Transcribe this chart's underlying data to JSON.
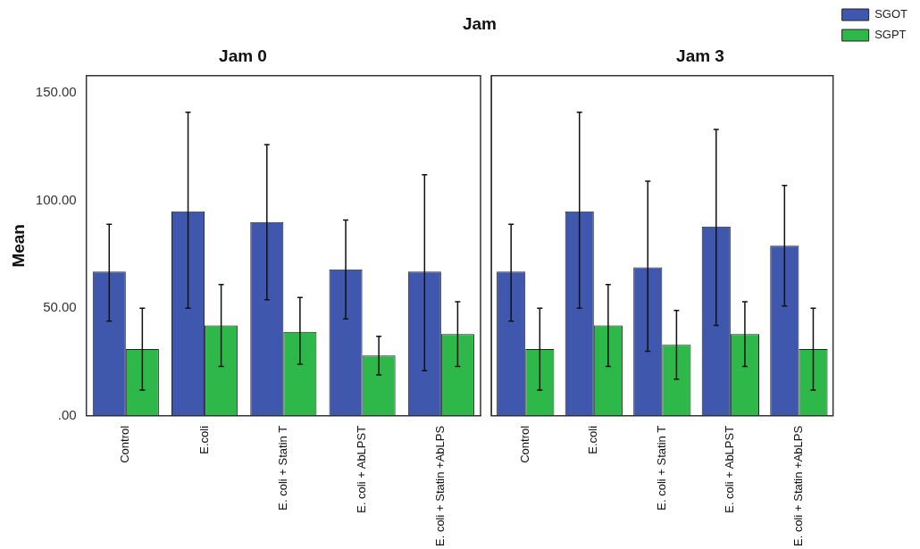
{
  "chart_data": [
    {
      "type": "bar",
      "title": "Jam 0",
      "annotations": [
        "Jam"
      ],
      "ylabel": "Mean",
      "categories": [
        "Control",
        "E.coli",
        "E. coli + Statin T",
        "E. coli + AbLPST",
        "E. coli + Statin +AbLPS"
      ],
      "series": [
        {
          "color": "#3f58ad",
          "values": [
            67,
            95,
            90,
            68,
            67
          ],
          "errors": [
            [
              44,
              89
            ],
            [
              50,
              141
            ],
            [
              54,
              126
            ],
            [
              45,
              91
            ],
            [
              21,
              112
            ]
          ]
        },
        {
          "color": "#2fb84a",
          "values": [
            31,
            42,
            39,
            28,
            38
          ],
          "errors": [
            [
              12,
              50
            ],
            [
              23,
              61
            ],
            [
              24,
              55
            ],
            [
              19,
              37
            ],
            [
              23,
              53
            ]
          ]
        }
      ],
      "ylim": [
        0,
        158
      ],
      "yticks": [
        {
          "value": 0,
          "label": ".00"
        },
        {
          "value": 50,
          "label": "50.00"
        },
        {
          "value": 100,
          "label": "100.00"
        },
        {
          "value": 150,
          "label": "150.00"
        }
      ],
      "grid": false,
      "legend": false
    },
    {
      "type": "bar",
      "title": "Jam 3",
      "categories": [
        "Control",
        "E.coli",
        "E. coli + Statin T",
        "E. coli + AbLPST",
        "E. coli + Statin +AbLPS"
      ],
      "series": [
        {
          "name": "SGOT",
          "color": "#3f58ad",
          "values": [
            67,
            95,
            69,
            88,
            79
          ],
          "errors": [
            [
              44,
              89
            ],
            [
              50,
              141
            ],
            [
              30,
              109
            ],
            [
              42,
              133
            ],
            [
              51,
              107
            ]
          ]
        },
        {
          "name": "SGPT",
          "color": "#2fb84a",
          "values": [
            31,
            42,
            33,
            38,
            31
          ],
          "errors": [
            [
              12,
              50
            ],
            [
              23,
              61
            ],
            [
              17,
              49
            ],
            [
              23,
              53
            ],
            [
              12,
              50
            ]
          ]
        }
      ],
      "ylim": [
        0,
        158
      ],
      "grid": false,
      "legend": "top right",
      "tick_labels": "x"
    }
  ]
}
